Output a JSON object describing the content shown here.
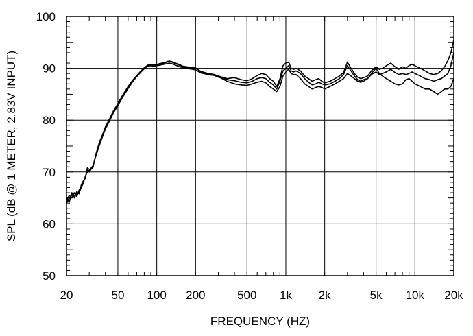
{
  "chart_data": {
    "type": "line",
    "xlabel": "FREQUENCY  (HZ)",
    "ylabel": "SPL (dB @ 1 METER, 2.83V INPUT)",
    "x_scale": "log",
    "xlim": [
      20,
      20000
    ],
    "ylim": [
      50,
      100
    ],
    "xticks": [
      {
        "value": 20,
        "label": "20"
      },
      {
        "value": 50,
        "label": "50"
      },
      {
        "value": 100,
        "label": "100"
      },
      {
        "value": 200,
        "label": "200"
      },
      {
        "value": 500,
        "label": "500"
      },
      {
        "value": 1000,
        "label": "1k"
      },
      {
        "value": 2000,
        "label": "2k"
      },
      {
        "value": 5000,
        "label": "5k"
      },
      {
        "value": 10000,
        "label": "10k"
      },
      {
        "value": 20000,
        "label": "20k"
      }
    ],
    "yticks": [
      {
        "value": 50,
        "label": "50"
      },
      {
        "value": 60,
        "label": "60"
      },
      {
        "value": 70,
        "label": "70"
      },
      {
        "value": 80,
        "label": "80"
      },
      {
        "value": 90,
        "label": "90"
      },
      {
        "value": 100,
        "label": "100"
      }
    ],
    "grid": true,
    "series": [
      {
        "x": [
          20,
          21,
          22,
          23,
          24,
          25,
          26,
          27,
          28,
          29,
          30,
          32,
          34,
          36,
          38,
          40,
          43,
          46,
          50,
          55,
          60,
          65,
          70,
          75,
          80,
          85,
          90,
          95,
          100,
          105,
          110,
          115,
          120,
          125,
          130,
          140,
          150,
          160,
          170,
          180,
          190,
          200,
          220,
          250,
          280,
          300,
          350,
          400,
          450,
          500,
          550,
          600,
          650,
          700,
          750,
          800,
          850,
          900,
          950,
          1000,
          1050,
          1100,
          1150,
          1200,
          1300,
          1400,
          1500,
          1600,
          1700,
          1800,
          1900,
          2000,
          2200,
          2400,
          2600,
          2800,
          3000,
          3200,
          3400,
          3600,
          3800,
          4000,
          4300,
          4600,
          5000,
          5300,
          5600,
          6000,
          6500,
          7000,
          7500,
          8000,
          8500,
          9000,
          9500,
          10000,
          11000,
          12000,
          13000,
          14000,
          15000,
          16000,
          17000,
          18000,
          19000,
          20000
        ],
        "y": [
          64.5,
          65.5,
          65.0,
          66.0,
          65.2,
          66.5,
          67.2,
          68.0,
          69.0,
          70.5,
          70.0,
          71.0,
          73.5,
          75.5,
          77.0,
          78.5,
          80.0,
          81.5,
          83.0,
          84.8,
          86.3,
          87.5,
          88.5,
          89.3,
          90.0,
          90.5,
          90.7,
          90.6,
          90.6,
          90.8,
          90.9,
          91.0,
          91.2,
          91.3,
          91.2,
          90.9,
          90.6,
          90.3,
          90.2,
          90.1,
          90.0,
          90.0,
          89.4,
          89.0,
          88.8,
          88.5,
          88.0,
          88.2,
          87.8,
          87.6,
          88.0,
          88.6,
          89.0,
          88.8,
          88.0,
          87.5,
          86.5,
          88.0,
          90.5,
          91.0,
          91.2,
          90.0,
          89.8,
          90.0,
          89.5,
          88.5,
          88.0,
          87.5,
          87.8,
          88.0,
          87.5,
          87.2,
          87.5,
          88.0,
          88.5,
          89.2,
          91.2,
          90.0,
          89.0,
          88.3,
          88.0,
          88.2,
          88.5,
          89.5,
          90.3,
          89.8,
          90.0,
          90.5,
          91.0,
          90.3,
          89.8,
          90.3,
          90.0,
          90.5,
          90.8,
          90.5,
          90.0,
          89.5,
          89.0,
          88.8,
          89.0,
          89.5,
          90.3,
          91.5,
          93.0,
          95.5
        ]
      },
      {
        "x": [
          20,
          21,
          22,
          23,
          24,
          25,
          26,
          27,
          28,
          29,
          30,
          32,
          34,
          36,
          38,
          40,
          43,
          46,
          50,
          55,
          60,
          65,
          70,
          75,
          80,
          85,
          90,
          95,
          100,
          105,
          110,
          115,
          120,
          125,
          130,
          140,
          150,
          160,
          170,
          180,
          190,
          200,
          220,
          250,
          280,
          300,
          350,
          400,
          450,
          500,
          550,
          600,
          650,
          700,
          750,
          800,
          850,
          900,
          950,
          1000,
          1050,
          1100,
          1150,
          1200,
          1300,
          1400,
          1500,
          1600,
          1700,
          1800,
          1900,
          2000,
          2200,
          2400,
          2600,
          2800,
          3000,
          3200,
          3400,
          3600,
          3800,
          4000,
          4300,
          4600,
          5000,
          5300,
          5600,
          6000,
          6500,
          7000,
          7500,
          8000,
          8500,
          9000,
          9500,
          10000,
          11000,
          12000,
          13000,
          14000,
          15000,
          16000,
          17000,
          18000,
          19000,
          20000
        ],
        "y": [
          64.0,
          65.0,
          65.5,
          65.3,
          65.8,
          66.0,
          67.0,
          67.8,
          69.2,
          70.0,
          70.3,
          71.2,
          73.3,
          75.2,
          76.8,
          78.3,
          79.8,
          81.3,
          82.8,
          84.6,
          86.1,
          87.4,
          88.4,
          89.2,
          89.9,
          90.4,
          90.5,
          90.4,
          90.5,
          90.6,
          90.7,
          90.8,
          90.9,
          91.0,
          90.9,
          90.6,
          90.3,
          90.1,
          90.0,
          89.9,
          89.8,
          89.7,
          89.1,
          88.8,
          88.6,
          88.3,
          87.8,
          87.6,
          87.3,
          87.2,
          87.5,
          88.0,
          88.2,
          88.0,
          87.3,
          86.8,
          86.0,
          87.5,
          89.5,
          90.0,
          90.5,
          89.5,
          89.3,
          89.5,
          89.0,
          88.0,
          87.3,
          86.8,
          87.0,
          87.3,
          87.0,
          86.8,
          87.0,
          87.5,
          88.0,
          88.8,
          90.5,
          89.5,
          88.5,
          87.8,
          87.5,
          87.8,
          88.0,
          88.8,
          89.3,
          88.8,
          89.0,
          89.3,
          89.8,
          89.2,
          88.8,
          89.0,
          88.8,
          89.0,
          89.3,
          89.0,
          88.5,
          88.0,
          87.8,
          87.5,
          87.8,
          88.0,
          88.5,
          89.0,
          90.5,
          93.0
        ]
      },
      {
        "x": [
          20,
          21,
          22,
          23,
          24,
          25,
          26,
          27,
          28,
          29,
          30,
          32,
          34,
          36,
          38,
          40,
          43,
          46,
          50,
          55,
          60,
          65,
          70,
          75,
          80,
          85,
          90,
          95,
          100,
          105,
          110,
          115,
          120,
          125,
          130,
          140,
          150,
          160,
          170,
          180,
          190,
          200,
          220,
          250,
          280,
          300,
          350,
          400,
          450,
          500,
          550,
          600,
          650,
          700,
          750,
          800,
          850,
          900,
          950,
          1000,
          1050,
          1100,
          1150,
          1200,
          1300,
          1400,
          1500,
          1600,
          1700,
          1800,
          1900,
          2000,
          2200,
          2400,
          2600,
          2800,
          3000,
          3200,
          3400,
          3600,
          3800,
          4000,
          4300,
          4600,
          5000,
          5300,
          5600,
          6000,
          6500,
          7000,
          7500,
          8000,
          8500,
          9000,
          9500,
          10000,
          11000,
          12000,
          13000,
          14000,
          15000,
          16000,
          17000,
          18000,
          19000,
          20000
        ],
        "y": [
          65.0,
          64.2,
          66.0,
          65.0,
          66.2,
          65.8,
          67.5,
          68.3,
          68.8,
          70.8,
          70.5,
          70.8,
          73.7,
          75.8,
          77.2,
          78.7,
          80.2,
          81.7,
          83.2,
          85.0,
          86.5,
          87.7,
          88.6,
          89.4,
          90.1,
          90.6,
          90.8,
          90.7,
          90.7,
          90.9,
          91.0,
          91.1,
          91.3,
          91.4,
          91.3,
          91.0,
          90.7,
          90.4,
          90.3,
          90.2,
          90.1,
          90.1,
          89.3,
          88.9,
          88.7,
          88.4,
          87.5,
          87.0,
          86.8,
          86.7,
          87.0,
          87.3,
          87.5,
          87.2,
          86.5,
          86.0,
          85.5,
          86.5,
          88.5,
          89.3,
          89.8,
          89.0,
          88.8,
          88.8,
          88.0,
          87.0,
          86.5,
          86.0,
          86.3,
          86.5,
          86.3,
          86.0,
          86.5,
          87.0,
          87.5,
          88.0,
          89.0,
          88.5,
          88.0,
          87.5,
          87.3,
          87.5,
          88.0,
          89.0,
          90.0,
          89.0,
          88.5,
          88.0,
          87.5,
          87.0,
          86.8,
          87.0,
          87.8,
          88.0,
          87.5,
          87.0,
          86.5,
          86.0,
          86.0,
          85.5,
          85.0,
          85.5,
          86.0,
          86.0,
          86.5,
          88.0
        ]
      }
    ]
  }
}
